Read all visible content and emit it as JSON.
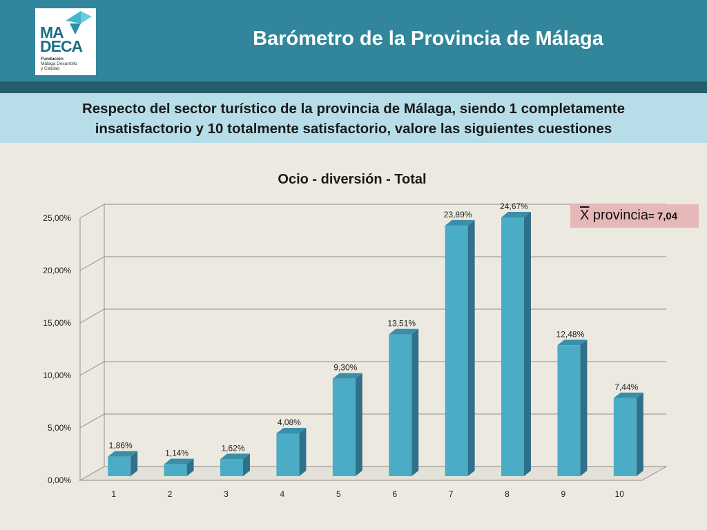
{
  "header": {
    "title": "Barómetro de la Provincia de Málaga",
    "logo": {
      "line1": "MA",
      "line2": "DECA",
      "sub1": "Fundación",
      "sub2": "Málaga Desarrollo",
      "sub3": "y Calidad"
    }
  },
  "question": {
    "line1": "Respecto del sector turístico de la provincia de Málaga, siendo 1 completamente",
    "line2": "insatisfactorio y 10 totalmente satisfactorio, valore las siguientes cuestiones"
  },
  "mean": {
    "symbol": "X",
    "label": " provincia",
    "value": "= 7,04"
  },
  "colors": {
    "header": "#31869b",
    "header_stripe": "#245d6b",
    "question_band": "#b7dee8",
    "background": "#eceae0",
    "bar_front": "#4bacc6",
    "bar_side": "#31708a",
    "bar_top": "#3a8ea8",
    "mean_box": "#e6b9b8"
  },
  "chart_data": {
    "type": "bar",
    "title": "Ocio - diversión - Total",
    "categories": [
      "1",
      "2",
      "3",
      "4",
      "5",
      "6",
      "7",
      "8",
      "9",
      "10"
    ],
    "values": [
      1.86,
      1.14,
      1.62,
      4.08,
      9.3,
      13.51,
      23.89,
      24.67,
      12.48,
      7.44
    ],
    "value_labels": [
      "1,86%",
      "1,14%",
      "1,62%",
      "4,08%",
      "9,30%",
      "13,51%",
      "23,89%",
      "24,67%",
      "12,48%",
      "7,44%"
    ],
    "yticks": [
      "0,00%",
      "5,00%",
      "10,00%",
      "15,00%",
      "20,00%",
      "25,00%"
    ],
    "ytick_values": [
      0,
      5,
      10,
      15,
      20,
      25
    ],
    "ylim": [
      0,
      25
    ],
    "grid": true,
    "style": "3d"
  }
}
